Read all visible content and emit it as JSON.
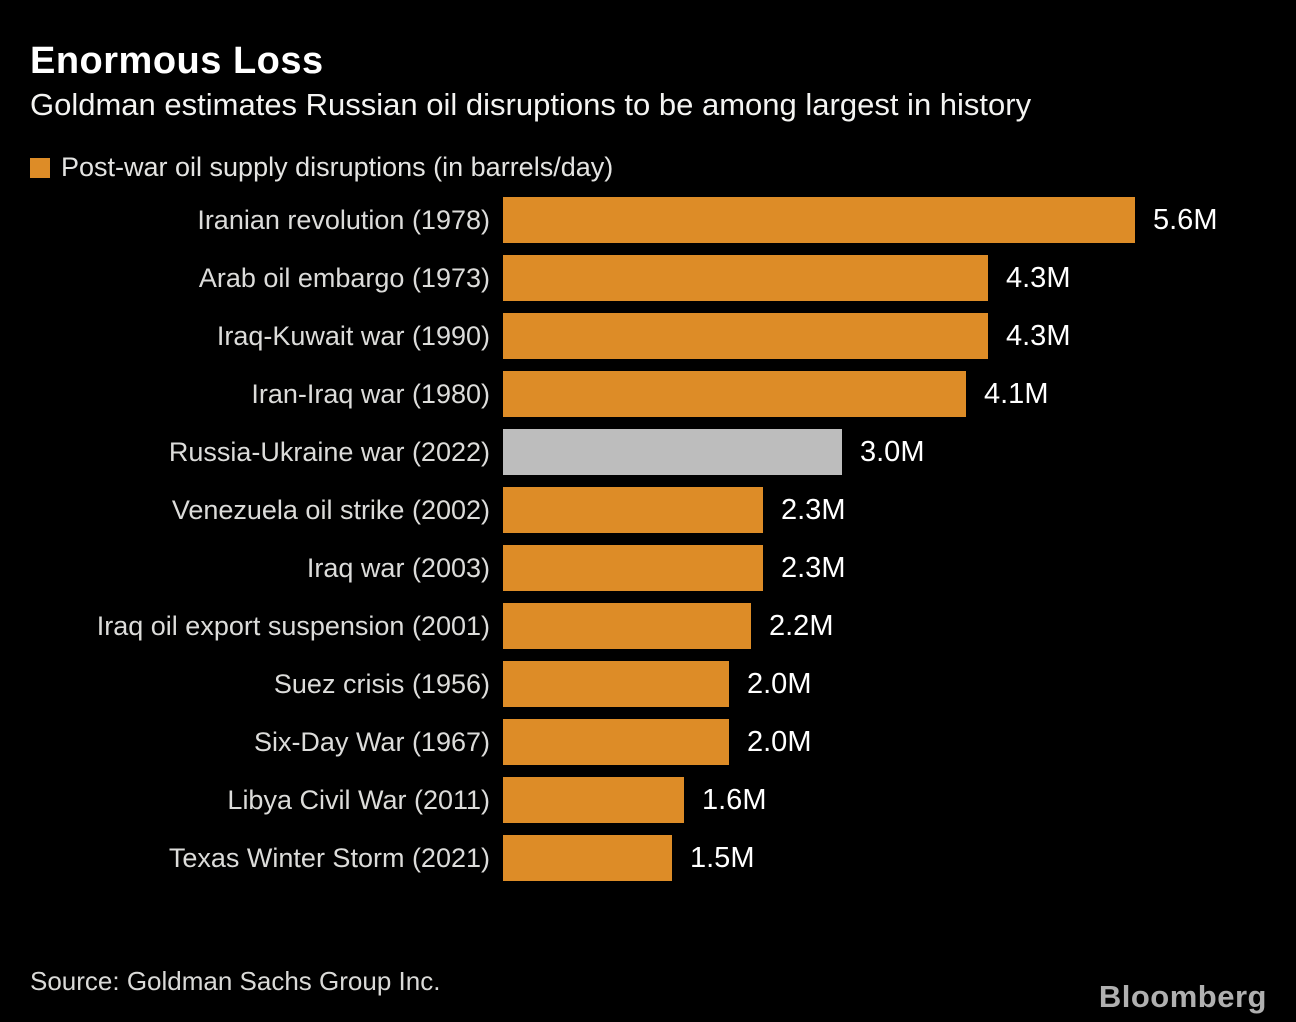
{
  "header": {
    "title": "Enormous Loss",
    "subtitle": "Goldman estimates Russian oil disruptions to be among largest in history"
  },
  "legend": {
    "label": "Post-war oil supply disruptions (in barrels/day)"
  },
  "chart_data": {
    "type": "bar",
    "orientation": "horizontal",
    "title": "Post-war oil supply disruptions (in barrels/day)",
    "unit": "million barrels/day",
    "categories": [
      "Iranian revolution (1978)",
      "Arab oil embargo (1973)",
      "Iraq-Kuwait war (1990)",
      "Iran-Iraq war (1980)",
      "Russia-Ukraine war (2022)",
      "Venezuela oil strike (2002)",
      "Iraq war (2003)",
      "Iraq oil export suspension (2001)",
      "Suez crisis (1956)",
      "Six-Day War (1967)",
      "Libya Civil War (2011)",
      "Texas Winter Storm (2021)"
    ],
    "values": [
      5.6,
      4.3,
      4.3,
      4.1,
      3.0,
      2.3,
      2.3,
      2.2,
      2.0,
      2.0,
      1.6,
      1.5
    ],
    "value_labels": [
      "5.6M",
      "4.3M",
      "4.3M",
      "4.1M",
      "3.0M",
      "2.3M",
      "2.3M",
      "2.2M",
      "2.0M",
      "2.0M",
      "1.6M",
      "1.5M"
    ],
    "highlight_index": 4,
    "xlim": [
      0,
      5.6
    ],
    "grid": false,
    "legend_position": "top-left"
  },
  "footer": {
    "source": "Source: Goldman Sachs Group Inc.",
    "brand": "Bloomberg"
  },
  "colors": {
    "background": "#000000",
    "bar_default": "#dd8c27",
    "bar_highlight": "#bdbdbd",
    "category_text": "#dcdcda",
    "value_text": "#ffffff",
    "brand_text": "#b0b0b0"
  }
}
